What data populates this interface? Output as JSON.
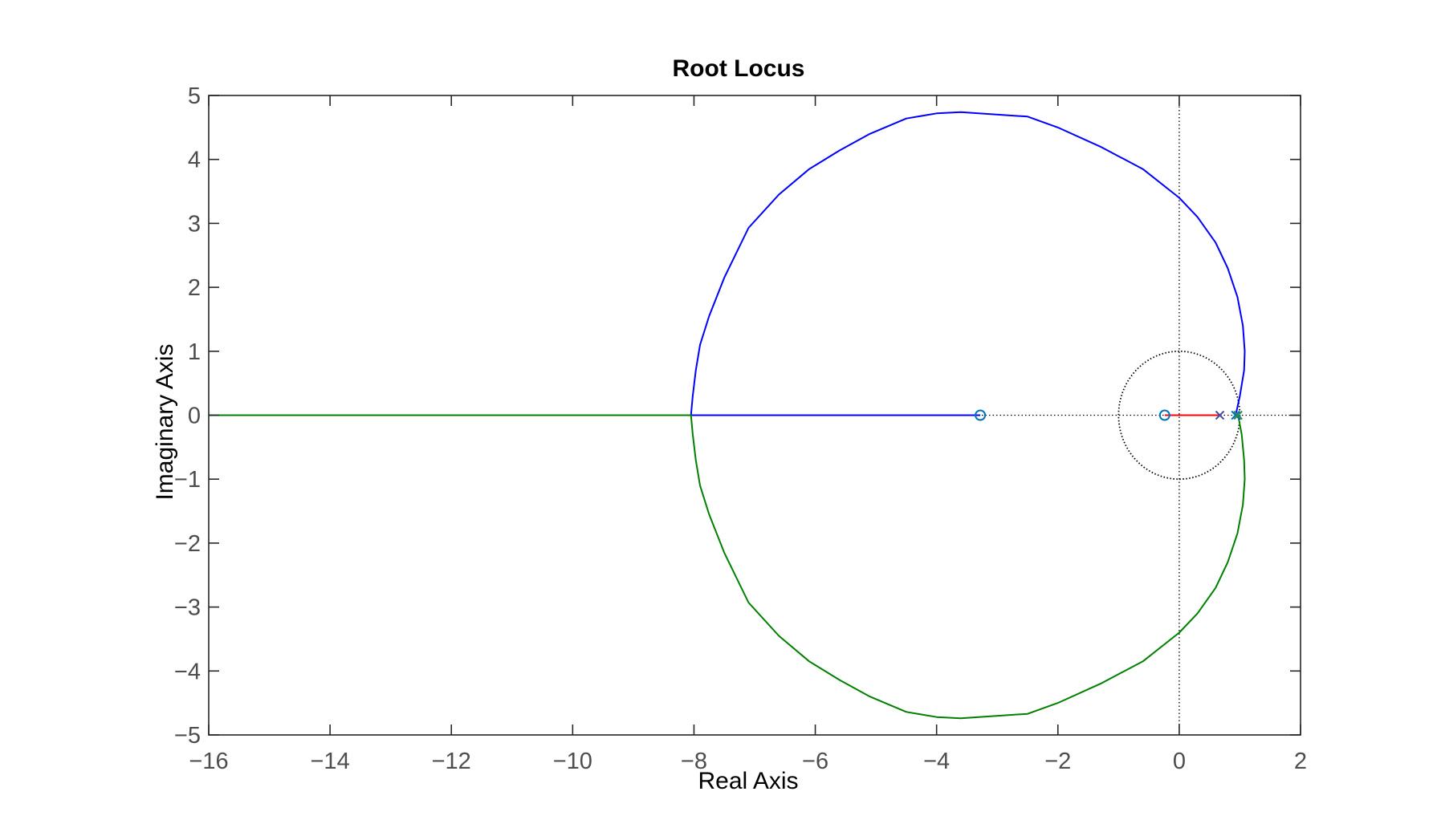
{
  "chart_data": {
    "type": "line",
    "title": "Root Locus",
    "xlabel": "Real Axis",
    "ylabel": "Imaginary Axis",
    "xlim": [
      -16,
      2
    ],
    "ylim": [
      -5,
      5
    ],
    "xticks": [
      -16,
      -14,
      -12,
      -10,
      -8,
      -6,
      -4,
      -2,
      0,
      2
    ],
    "yticks": [
      -5,
      -4,
      -3,
      -2,
      -1,
      0,
      1,
      2,
      3,
      4,
      5
    ],
    "grid": false,
    "unit_circle": true,
    "branches": [
      {
        "color": "#0000ff",
        "points": [
          [
            0.93,
            0.0
          ],
          [
            1.0,
            0.3
          ],
          [
            1.07,
            0.7
          ],
          [
            1.08,
            1.0
          ],
          [
            1.05,
            1.4
          ],
          [
            0.96,
            1.85
          ],
          [
            0.8,
            2.3
          ],
          [
            0.6,
            2.7
          ],
          [
            0.3,
            3.1
          ],
          [
            0.0,
            3.4
          ],
          [
            -0.6,
            3.85
          ],
          [
            -1.3,
            4.2
          ],
          [
            -2.0,
            4.5
          ],
          [
            -2.5,
            4.67
          ],
          [
            -3.6,
            4.74
          ],
          [
            -4.0,
            4.72
          ],
          [
            -4.5,
            4.64
          ],
          [
            -5.1,
            4.4
          ],
          [
            -5.6,
            4.14
          ],
          [
            -6.1,
            3.85
          ],
          [
            -6.6,
            3.45
          ],
          [
            -7.1,
            2.93
          ],
          [
            -7.5,
            2.15
          ],
          [
            -7.75,
            1.55
          ],
          [
            -7.9,
            1.1
          ],
          [
            -7.97,
            0.7
          ],
          [
            -8.02,
            0.3
          ],
          [
            -8.05,
            0.0
          ],
          [
            -3.28,
            0.0
          ]
        ]
      },
      {
        "color": "#008000",
        "points": [
          [
            0.97,
            0.0
          ],
          [
            1.03,
            -0.3
          ],
          [
            1.07,
            -0.7
          ],
          [
            1.08,
            -1.0
          ],
          [
            1.05,
            -1.4
          ],
          [
            0.96,
            -1.85
          ],
          [
            0.8,
            -2.3
          ],
          [
            0.6,
            -2.7
          ],
          [
            0.3,
            -3.1
          ],
          [
            0.0,
            -3.4
          ],
          [
            -0.6,
            -3.85
          ],
          [
            -1.3,
            -4.2
          ],
          [
            -2.0,
            -4.5
          ],
          [
            -2.5,
            -4.67
          ],
          [
            -3.6,
            -4.74
          ],
          [
            -4.0,
            -4.72
          ],
          [
            -4.5,
            -4.64
          ],
          [
            -5.1,
            -4.4
          ],
          [
            -5.6,
            -4.14
          ],
          [
            -6.1,
            -3.85
          ],
          [
            -6.6,
            -3.45
          ],
          [
            -7.1,
            -2.93
          ],
          [
            -7.5,
            -2.15
          ],
          [
            -7.75,
            -1.55
          ],
          [
            -7.9,
            -1.1
          ],
          [
            -7.97,
            -0.7
          ],
          [
            -8.02,
            -0.3
          ],
          [
            -8.05,
            0.0
          ],
          [
            -16.0,
            0.0
          ]
        ]
      },
      {
        "color": "#ff0000",
        "points": [
          [
            0.67,
            0.0
          ],
          [
            -0.24,
            0.0
          ]
        ]
      }
    ],
    "poles": [
      {
        "re": 0.67,
        "im": 0.0,
        "color": "#4a4a9c"
      },
      {
        "re": 0.93,
        "im": 0.0,
        "color": "#0072bd"
      },
      {
        "re": 0.97,
        "im": 0.0,
        "color": "#2e8b57"
      }
    ],
    "zeros": [
      {
        "re": -3.28,
        "im": 0.0,
        "color": "#0072bd"
      },
      {
        "re": -0.24,
        "im": 0.0,
        "color": "#0072bd"
      }
    ]
  }
}
